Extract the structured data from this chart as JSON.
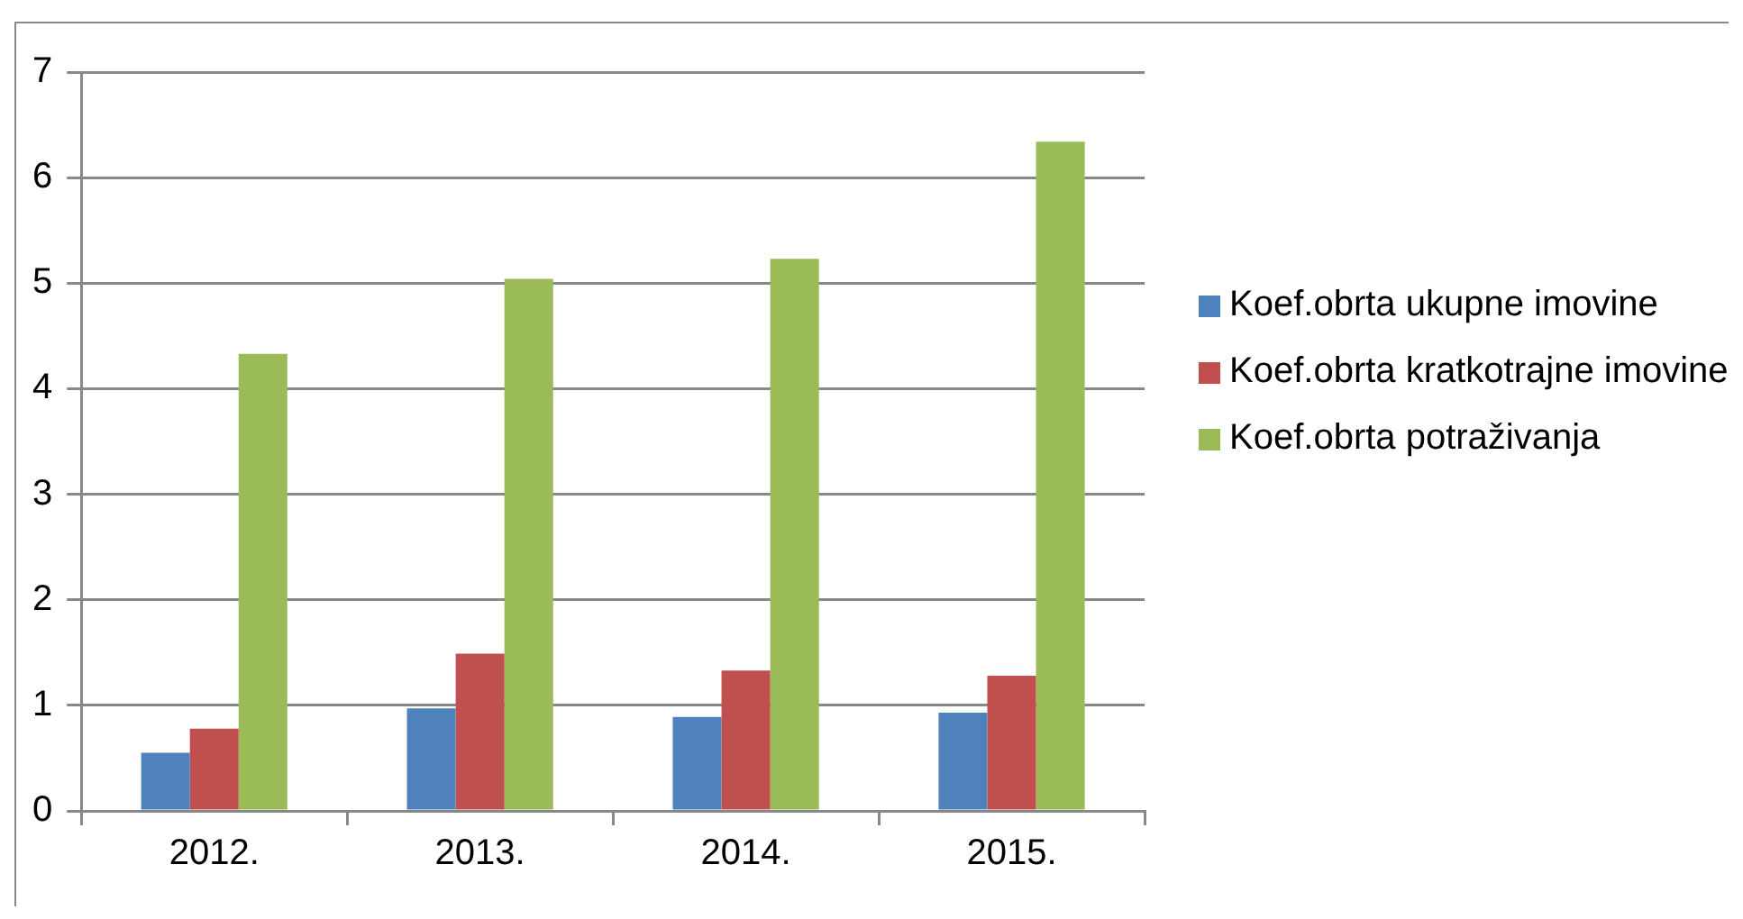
{
  "chart_data": {
    "type": "bar",
    "categories": [
      "2012.",
      "2013.",
      "2014.",
      "2015."
    ],
    "series": [
      {
        "name": "Koef.obrta ukupne imovine",
        "color": "#4f81bd",
        "values": [
          0.55,
          0.97,
          0.89,
          0.93
        ]
      },
      {
        "name": "Koef.obrta kratkotrajne imovine",
        "color": "#c0504d",
        "values": [
          0.78,
          1.49,
          1.33,
          1.28
        ]
      },
      {
        "name": "Koef.obrta potraživanja",
        "color": "#9bbb59",
        "values": [
          4.33,
          5.04,
          5.23,
          6.34
        ]
      }
    ],
    "ylim": [
      0,
      7
    ],
    "yticks": [
      0,
      1,
      2,
      3,
      4,
      5,
      6,
      7
    ],
    "grid": "y",
    "legend": "right"
  }
}
